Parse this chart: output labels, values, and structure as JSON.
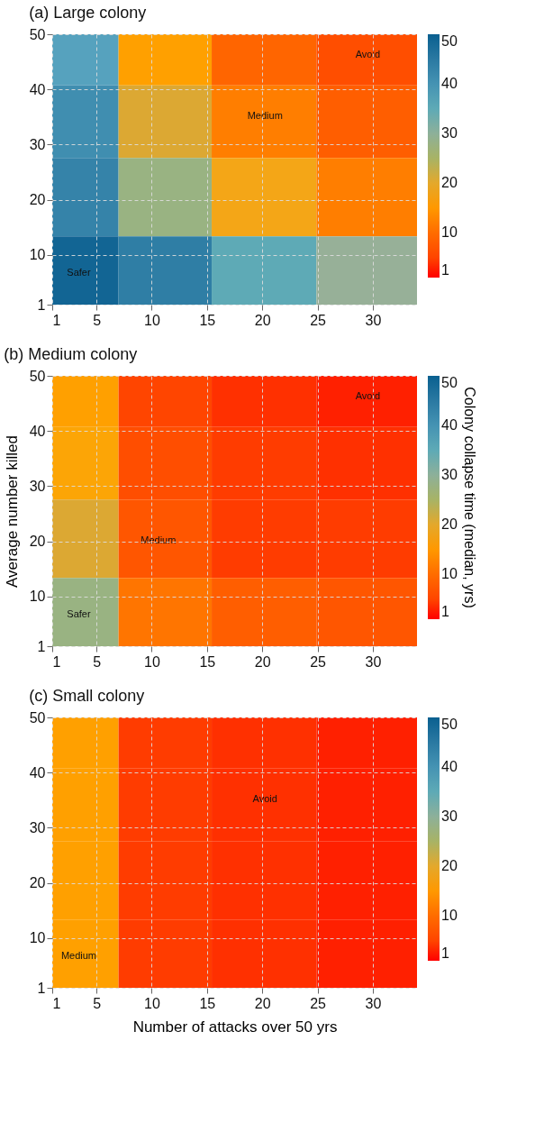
{
  "chart_data": [
    {
      "type": "heatmap",
      "title": "(a) Large colony",
      "x": [
        3.4,
        10.6,
        20.25,
        29.55
      ],
      "y": [
        46.3,
        35.15,
        20.05,
        6.7
      ],
      "cells": [
        [
          37,
          16,
          9,
          6
        ],
        [
          41,
          21,
          12,
          8
        ],
        [
          43,
          27,
          18,
          12
        ],
        [
          49,
          44,
          35,
          29
        ]
      ],
      "cell_labels": [
        [
          null,
          null,
          null,
          "Avoid"
        ],
        [
          null,
          null,
          "Medium",
          null
        ],
        [
          null,
          null,
          null,
          null
        ],
        [
          "Safer",
          null,
          null,
          null
        ]
      ],
      "xlim": [
        1,
        34
      ],
      "xticks": [
        1,
        5,
        10,
        15,
        20,
        25,
        30
      ],
      "ylim": [
        1,
        50
      ],
      "yticks": [
        1,
        10,
        20,
        30,
        40,
        50
      ],
      "clim": [
        1,
        50
      ],
      "cticks": [
        1,
        10,
        20,
        30,
        40,
        50
      ],
      "grid": true
    },
    {
      "type": "heatmap",
      "title": "(b) Medium colony",
      "ylabel": "Average number killed",
      "clabel": "Colony collapse time (median, yrs)",
      "x": [
        3.4,
        10.6,
        20.25,
        29.55
      ],
      "y": [
        46.3,
        35.15,
        20.05,
        6.7
      ],
      "cells": [
        [
          16,
          5,
          3,
          2
        ],
        [
          17,
          6,
          4,
          3
        ],
        [
          21,
          7,
          4,
          4
        ],
        [
          27,
          11,
          8,
          7
        ]
      ],
      "cell_labels": [
        [
          null,
          null,
          null,
          "Avoid"
        ],
        [
          null,
          null,
          null,
          null
        ],
        [
          null,
          "Medium",
          null,
          null
        ],
        [
          "Safer",
          null,
          null,
          null
        ]
      ],
      "xlim": [
        1,
        34
      ],
      "xticks": [
        1,
        5,
        10,
        15,
        20,
        25,
        30
      ],
      "ylim": [
        1,
        50
      ],
      "yticks": [
        1,
        10,
        20,
        30,
        40,
        50
      ],
      "clim": [
        1,
        50
      ],
      "cticks": [
        1,
        10,
        20,
        30,
        40,
        50
      ],
      "grid": true
    },
    {
      "type": "heatmap",
      "title": "(c) Small colony",
      "xlabel": "Number of attacks over 50 yrs",
      "x": [
        3.4,
        10.6,
        20.25,
        29.55
      ],
      "y": [
        46.3,
        35.15,
        20.05,
        6.7
      ],
      "cells": [
        [
          16,
          4,
          3,
          2
        ],
        [
          16,
          4,
          3,
          2
        ],
        [
          16,
          4,
          3,
          2
        ],
        [
          16,
          4,
          3,
          2
        ]
      ],
      "cell_labels": [
        [
          null,
          null,
          null,
          null
        ],
        [
          null,
          null,
          "Avoid",
          null
        ],
        [
          null,
          null,
          null,
          null
        ],
        [
          "Medium",
          null,
          null,
          null
        ]
      ],
      "xlim": [
        1,
        34
      ],
      "xticks": [
        1,
        5,
        10,
        15,
        20,
        25,
        30
      ],
      "ylim": [
        1,
        50
      ],
      "yticks": [
        1,
        10,
        20,
        30,
        40,
        50
      ],
      "clim": [
        1,
        50
      ],
      "cticks": [
        1,
        10,
        20,
        30,
        40,
        50
      ],
      "grid": true
    }
  ]
}
